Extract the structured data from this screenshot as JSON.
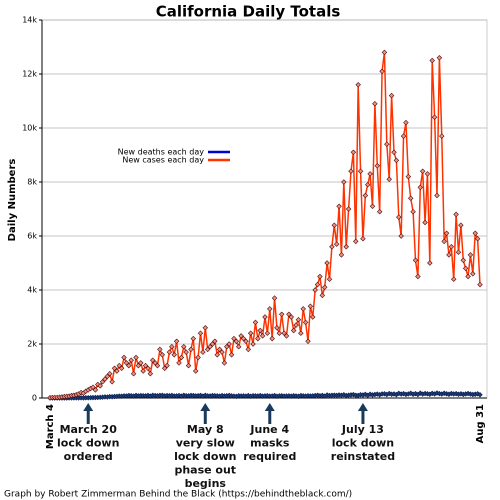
{
  "chart_data": {
    "type": "line",
    "title": "California Daily Totals",
    "y_label": "Daily Numbers",
    "footer": "Graph by Robert Zimmerman Behind the Black (https://behindtheblack.com/)",
    "categories": [
      "March 4",
      null,
      null,
      null,
      null,
      null,
      null,
      null,
      null,
      null,
      null,
      null,
      null,
      null,
      null,
      null,
      null,
      null,
      null,
      null,
      null,
      null,
      null,
      null,
      null,
      null,
      null,
      null,
      null,
      null,
      null,
      null,
      null,
      null,
      null,
      null,
      null,
      null,
      null,
      null,
      null,
      null,
      null,
      null,
      null,
      null,
      null,
      null,
      null,
      null,
      null,
      null,
      null,
      null,
      null,
      null,
      null,
      null,
      null,
      null,
      null,
      null,
      null,
      null,
      null,
      null,
      null,
      null,
      null,
      null,
      null,
      null,
      null,
      null,
      null,
      null,
      null,
      null,
      null,
      null,
      null,
      null,
      null,
      null,
      null,
      null,
      null,
      null,
      null,
      null,
      null,
      null,
      null,
      null,
      null,
      null,
      null,
      null,
      null,
      null,
      null,
      null,
      null,
      null,
      null,
      null,
      null,
      null,
      null,
      null,
      null,
      null,
      null,
      null,
      null,
      null,
      null,
      null,
      null,
      null,
      null,
      null,
      null,
      null,
      null,
      null,
      null,
      null,
      null,
      null,
      null,
      null,
      null,
      null,
      null,
      null,
      null,
      null,
      null,
      null,
      null,
      null,
      null,
      null,
      null,
      null,
      null,
      null,
      null,
      null,
      null,
      null,
      null,
      null,
      null,
      null,
      null,
      null,
      null,
      null,
      null,
      null,
      null,
      null,
      null,
      null,
      null,
      null,
      null,
      null,
      null,
      null,
      null,
      null,
      null,
      null,
      null,
      null,
      null,
      null,
      "Aug 31"
    ],
    "series": [
      {
        "name": "New deaths each day",
        "color": "#0000cc",
        "values": [
          0,
          0,
          0,
          0,
          0,
          0,
          1,
          1,
          2,
          3,
          2,
          4,
          5,
          6,
          4,
          8,
          10,
          12,
          14,
          18,
          20,
          25,
          30,
          40,
          35,
          50,
          45,
          55,
          60,
          70,
          65,
          80,
          75,
          90,
          85,
          70,
          95,
          80,
          90,
          85,
          80,
          95,
          70,
          100,
          90,
          85,
          95,
          100,
          80,
          90,
          85,
          95,
          75,
          80,
          90,
          70,
          100,
          85,
          80,
          95,
          90,
          80,
          85,
          95,
          70,
          100,
          80,
          75,
          90,
          85,
          80,
          70,
          90,
          75,
          85,
          95,
          80,
          70,
          60,
          85,
          75,
          80,
          70,
          90,
          65,
          85,
          80,
          75,
          90,
          70,
          80,
          85,
          70,
          75,
          90,
          65,
          80,
          85,
          70,
          75,
          80,
          70,
          85,
          75,
          65,
          90,
          80,
          70,
          85,
          75,
          80,
          90,
          100,
          85,
          95,
          70,
          110,
          90,
          100,
          105,
          95,
          110,
          100,
          120,
          90,
          105,
          115,
          125,
          100,
          95,
          120,
          110,
          135,
          100,
          140,
          115,
          130,
          145,
          120,
          150,
          155,
          130,
          165,
          140,
          150,
          125,
          170,
          145,
          160,
          135,
          150,
          175,
          140,
          160,
          130,
          180,
          145,
          165,
          155,
          140,
          170,
          150,
          185,
          160,
          145,
          175,
          155,
          140,
          165,
          150,
          160,
          140,
          155,
          135,
          150,
          165,
          145,
          130,
          140,
          155,
          120
        ]
      },
      {
        "name": "New cases each day",
        "color": "#ff3300",
        "values": [
          10,
          20,
          20,
          20,
          30,
          40,
          50,
          60,
          70,
          90,
          100,
          120,
          150,
          200,
          180,
          250,
          300,
          350,
          400,
          300,
          500,
          450,
          600,
          700,
          800,
          900,
          600,
          1100,
          1000,
          1200,
          1100,
          1500,
          1300,
          1200,
          1400,
          900,
          1500,
          1200,
          1300,
          1000,
          1200,
          1100,
          900,
          1400,
          1300,
          1200,
          1800,
          1600,
          1100,
          1200,
          1700,
          1900,
          1600,
          2100,
          1300,
          1500,
          1900,
          1700,
          1200,
          1800,
          2200,
          1000,
          1500,
          2400,
          1700,
          2600,
          1800,
          1900,
          2000,
          2100,
          1600,
          1800,
          1700,
          1300,
          1900,
          2000,
          1600,
          2200,
          2100,
          1900,
          2300,
          2200,
          2100,
          1800,
          2400,
          2000,
          2800,
          2200,
          2500,
          2300,
          3000,
          2400,
          3300,
          2200,
          3700,
          2600,
          2400,
          3100,
          2400,
          2300,
          3100,
          3000,
          2500,
          2700,
          2900,
          2400,
          3300,
          2800,
          2100,
          3400,
          3000,
          4000,
          4200,
          4500,
          3800,
          4100,
          5000,
          4400,
          5600,
          6400,
          5700,
          7100,
          5300,
          8000,
          5600,
          7000,
          8400,
          9100,
          5800,
          11600,
          8400,
          5900,
          7500,
          7900,
          8300,
          7100,
          10900,
          8600,
          6900,
          12100,
          12800,
          9400,
          8100,
          11200,
          9100,
          8800,
          6700,
          6000,
          9700,
          10200,
          8200,
          7400,
          6900,
          5100,
          4500,
          7800,
          8400,
          6500,
          8300,
          5000,
          12500,
          10400,
          7500,
          12600,
          9700,
          5800,
          6100,
          5300,
          5600,
          4400,
          6800,
          5400,
          6400,
          5100,
          4800,
          4500,
          5300,
          4600,
          6100,
          5900,
          4200
        ]
      }
    ],
    "ylim": [
      0,
      14000
    ],
    "yticks": [
      0,
      {
        "value": 2000,
        "label": "2k"
      },
      {
        "value": 4000,
        "label": "4k"
      },
      {
        "value": 6000,
        "label": "6k"
      },
      {
        "value": 8000,
        "label": "8k"
      },
      {
        "value": 10000,
        "label": "10k"
      },
      {
        "value": 12000,
        "label": "12k"
      },
      {
        "value": 14000,
        "label": "14k"
      }
    ],
    "grid": true,
    "annotations": [
      {
        "lines": [
          "March 20",
          "lock down",
          "ordered"
        ]
      },
      {
        "lines": [
          "May 8",
          "very slow",
          "lock down",
          "phase out",
          "begins"
        ]
      },
      {
        "lines": [
          "June 4",
          "masks",
          "required"
        ]
      },
      {
        "lines": [
          "July 13",
          "lock down",
          "reinstated"
        ]
      }
    ]
  }
}
